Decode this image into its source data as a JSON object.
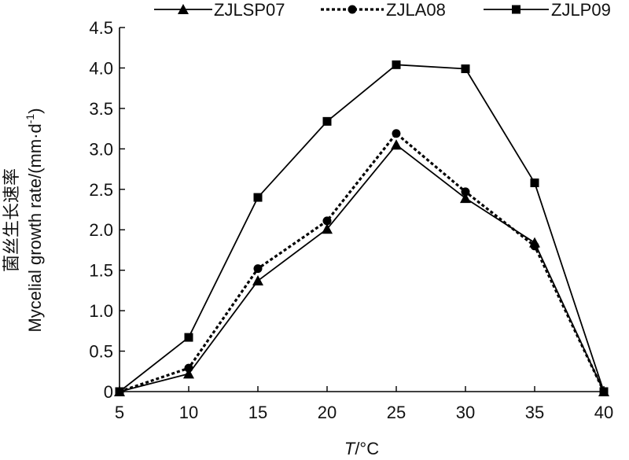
{
  "chart_data": {
    "type": "line",
    "x": [
      5,
      10,
      15,
      20,
      25,
      30,
      35,
      40
    ],
    "xlim": [
      5,
      40
    ],
    "ylim": [
      0,
      4.5
    ],
    "x_ticks": [
      "5",
      "10",
      "15",
      "20",
      "25",
      "30",
      "35",
      "40"
    ],
    "y_ticks": [
      "0",
      "0.5",
      "1.0",
      "1.5",
      "2.0",
      "2.5",
      "3.0",
      "3.5",
      "4.0",
      "4.5"
    ],
    "xlabel_italic": "T",
    "xlabel_rest": "/°C",
    "ylabel_cn": "菌丝生长速率",
    "ylabel_en_main": "Mycelial growth rate/(mm·d",
    "ylabel_en_sup": "-1",
    "ylabel_en_end": ")",
    "grid": false,
    "legend_position": "top",
    "series": [
      {
        "name": "ZJLSP07",
        "marker": "triangle",
        "line_style": "solid",
        "values": [
          0,
          0.22,
          1.37,
          2.01,
          3.05,
          2.39,
          1.84,
          0
        ]
      },
      {
        "name": "ZJLA08",
        "marker": "circle",
        "line_style": "dotted",
        "values": [
          0,
          0.29,
          1.52,
          2.11,
          3.19,
          2.47,
          1.8,
          0
        ]
      },
      {
        "name": "ZJLP09",
        "marker": "square",
        "line_style": "solid",
        "values": [
          0,
          0.67,
          2.4,
          3.34,
          4.04,
          3.99,
          2.58,
          0
        ]
      }
    ]
  }
}
